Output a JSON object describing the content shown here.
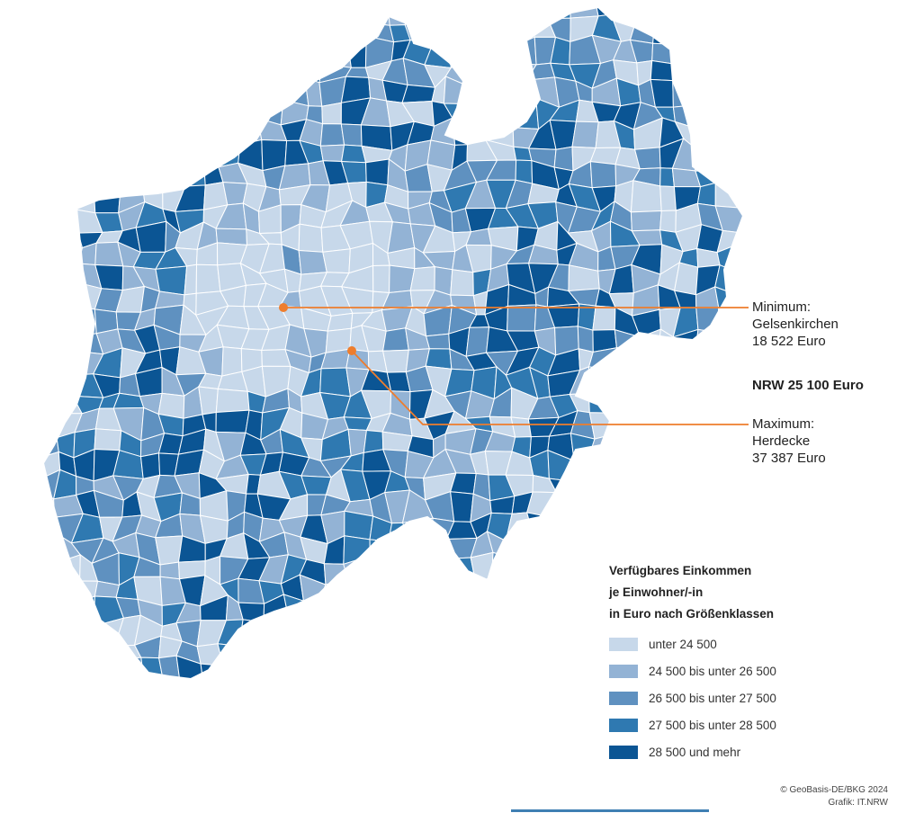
{
  "map": {
    "class_colors": [
      "#c7d8ea",
      "#93b3d5",
      "#5f91c0",
      "#2f79b1",
      "#0b5594"
    ],
    "border_color": "#ffffff",
    "callout_color": "#ee7d2d"
  },
  "callouts": {
    "minimum": {
      "label": "Minimum:",
      "name": "Gelsenkirchen",
      "value": "18 522 Euro"
    },
    "maximum": {
      "label": "Maximum:",
      "name": "Herdecke",
      "value": "37 387 Euro"
    }
  },
  "nrw_average": "NRW 25 100 Euro",
  "legend": {
    "title_lines": [
      "Verfügbares Einkommen",
      "je Einwohner/-in",
      "in Euro nach Größenklassen"
    ],
    "items": [
      {
        "label": "unter 24 500",
        "color": "#c7d8ea"
      },
      {
        "label": "24 500 bis unter 26 500",
        "color": "#93b3d5"
      },
      {
        "label": "26 500 bis unter 27 500",
        "color": "#5f91c0"
      },
      {
        "label": "27 500 bis unter 28 500",
        "color": "#2f79b1"
      },
      {
        "label": "28 500 und mehr",
        "color": "#0b5594"
      }
    ]
  },
  "credits": {
    "line1": "© GeoBasis-DE/BKG 2024",
    "line2": "Grafik: IT.NRW"
  }
}
